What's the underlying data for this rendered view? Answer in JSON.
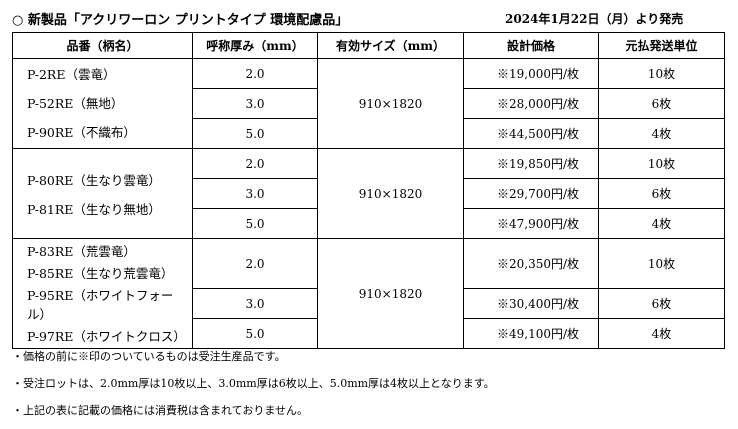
{
  "header": {
    "title": "○ 新製品「アクリワーロン プリントタイプ 環境配慮品」",
    "release": "2024年1月22日（月）より発売"
  },
  "table": {
    "columns": [
      "品番（柄名）",
      "呼称厚み（mm）",
      "有効サイズ（mm）",
      "設計価格",
      "元払発送単位"
    ],
    "groups": [
      {
        "products": [
          "P-2RE（雲竜）",
          "P-52RE（無地）",
          "P-90RE（不織布）"
        ],
        "size": "910×1820",
        "rows": [
          [
            "2.0",
            "※19,000円/枚",
            "10枚"
          ],
          [
            "3.0",
            "※28,000円/枚",
            "6枚"
          ],
          [
            "5.0",
            "※44,500円/枚",
            "4枚"
          ]
        ]
      },
      {
        "products": [
          "P-80RE（生なり雲竜）",
          "P-81RE（生なり無地）"
        ],
        "size": "910×1820",
        "rows": [
          [
            "2.0",
            "※19,850円/枚",
            "10枚"
          ],
          [
            "3.0",
            "※29,700円/枚",
            "6枚"
          ],
          [
            "5.0",
            "※47,900円/枚",
            "4枚"
          ]
        ]
      },
      {
        "products": [
          "P-83RE（荒雲竜）",
          "P-85RE（生なり荒雲竜）",
          "P-95RE（ホワイトフォール）",
          "P-97RE（ホワイトクロス）"
        ],
        "size": "910×1820",
        "rows": [
          [
            "2.0",
            "※20,350円/枚",
            "10枚"
          ],
          [
            "3.0",
            "※30,400円/枚",
            "6枚"
          ],
          [
            "5.0",
            "※49,100円/枚",
            "4枚"
          ]
        ]
      }
    ]
  },
  "notes": [
    "・価格の前に※印のついているものは受注生産品です。",
    "・受注ロットは、2.0mm厚は10枚以上、3.0mm厚は6枚以上、5.0mm厚は4枚以上となります。",
    "・上記の表に記載の価格には消費税は含まれておりません。"
  ]
}
